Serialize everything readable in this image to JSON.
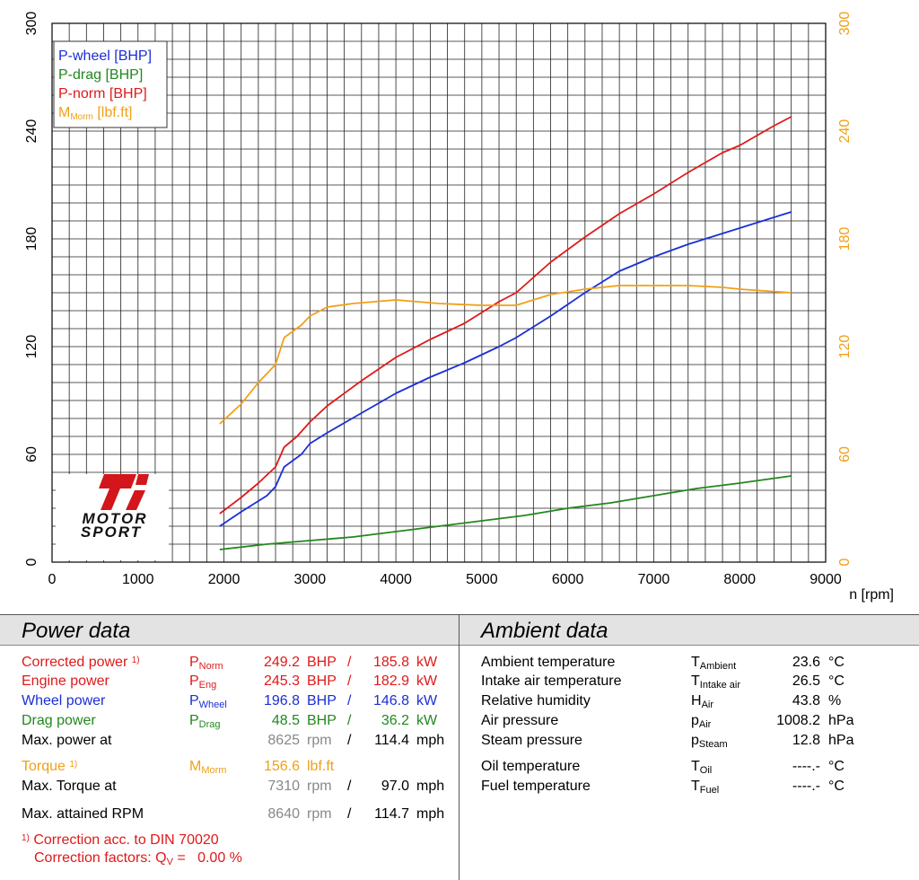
{
  "chart_data": {
    "type": "line",
    "xlabel": "n [rpm]",
    "xlim": [
      0,
      9000
    ],
    "x_ticks": [
      0,
      1000,
      2000,
      3000,
      4000,
      5000,
      6000,
      7000,
      8000,
      9000
    ],
    "ylim_left": [
      0,
      300
    ],
    "ylim_right": [
      0,
      300
    ],
    "y_ticks": [
      0,
      60,
      120,
      180,
      240,
      300
    ],
    "grid": true,
    "legend_position": "top-left",
    "series": [
      {
        "name": "P-wheel [BHP]",
        "color": "#1a2fd6",
        "axis": "left",
        "x": [
          1950,
          2200,
          2500,
          2600,
          2700,
          2900,
          3000,
          3200,
          3600,
          4000,
          4400,
          4800,
          5200,
          5400,
          5800,
          6200,
          6600,
          7000,
          7400,
          7800,
          8000,
          8400,
          8600
        ],
        "y": [
          20,
          28,
          37,
          42,
          53,
          60,
          66,
          72,
          83,
          94,
          103,
          111,
          120,
          125,
          137,
          150,
          162,
          170,
          177,
          183,
          186,
          192,
          195
        ]
      },
      {
        "name": "P-drag [BHP]",
        "color": "#22881e",
        "axis": "left",
        "x": [
          1950,
          2500,
          3000,
          3500,
          4000,
          4500,
          5000,
          5500,
          6000,
          6500,
          7000,
          7500,
          8000,
          8600
        ],
        "y": [
          7,
          10,
          12,
          14,
          17,
          20,
          23,
          26,
          30,
          33,
          37,
          41,
          44,
          48
        ]
      },
      {
        "name": "P-norm [BHP]",
        "color": "#e01919",
        "axis": "left",
        "x": [
          1950,
          2200,
          2400,
          2600,
          2700,
          2850,
          3000,
          3200,
          3600,
          4000,
          4400,
          4800,
          5200,
          5400,
          5800,
          6200,
          6600,
          7000,
          7400,
          7800,
          8000,
          8400,
          8600
        ],
        "y": [
          27,
          36,
          44,
          53,
          64,
          70,
          78,
          87,
          101,
          114,
          124,
          133,
          145,
          150,
          167,
          181,
          194,
          205,
          217,
          228,
          232,
          243,
          248
        ]
      },
      {
        "name": "M_Morm [lbf.ft]",
        "color": "#f0a018",
        "axis": "right",
        "x": [
          1950,
          2200,
          2400,
          2600,
          2700,
          2900,
          3000,
          3200,
          3500,
          4000,
          4500,
          5000,
          5400,
          5800,
          6200,
          6600,
          7000,
          7400,
          7800,
          8000,
          8600
        ],
        "y": [
          77,
          88,
          100,
          110,
          125,
          132,
          137,
          142,
          144,
          146,
          144,
          143,
          143,
          149,
          152,
          154,
          154,
          154,
          153,
          152,
          150
        ]
      }
    ]
  },
  "legend": [
    {
      "main": "P-wheel [BHP]",
      "sub": "",
      "color": "#1a2fd6"
    },
    {
      "main": "P-drag [BHP]",
      "sub": "",
      "color": "#22881e"
    },
    {
      "main": "P-norm [BHP]",
      "sub": "",
      "color": "#e01919"
    },
    {
      "main": "M",
      "sub": "Morm",
      "rest": " [lbf.ft]",
      "color": "#f0a018"
    }
  ],
  "logo": {
    "line1": "MOTOR",
    "line2": "SPORT"
  },
  "power": {
    "title": "Power data",
    "corrected": {
      "label": "Corrected power",
      "mark": "1)",
      "sym": "P",
      "sub": "Norm",
      "v1": "249.2",
      "u1": "BHP",
      "slash": "/",
      "v2": "185.8",
      "u2": "kW"
    },
    "engine": {
      "label": "Engine power",
      "sym": "P",
      "sub": "Eng",
      "v1": "245.3",
      "u1": "BHP",
      "slash": "/",
      "v2": "182.9",
      "u2": "kW"
    },
    "wheel": {
      "label": "Wheel power",
      "sym": "P",
      "sub": "Wheel",
      "v1": "196.8",
      "u1": "BHP",
      "slash": "/",
      "v2": "146.8",
      "u2": "kW"
    },
    "drag": {
      "label": "Drag power",
      "sym": "P",
      "sub": "Drag",
      "v1": "48.5",
      "u1": "BHP",
      "slash": "/",
      "v2": "36.2",
      "u2": "kW"
    },
    "maxpower": {
      "label": "Max. power at",
      "v1": "8625",
      "u1": "rpm",
      "slash": "/",
      "v2": "114.4",
      "u2": "mph"
    },
    "torque": {
      "label": "Torque",
      "mark": "1)",
      "sym": "M",
      "sub": "Morm",
      "v1": "156.6",
      "u1": "lbf.ft"
    },
    "maxtorque": {
      "label": "Max. Torque at",
      "v1": "7310",
      "u1": "rpm",
      "slash": "/",
      "v2": "97.0",
      "u2": "mph"
    },
    "maxrpm": {
      "label": "Max. attained RPM",
      "v1": "8640",
      "u1": "rpm",
      "slash": "/",
      "v2": "114.7",
      "u2": "mph"
    },
    "note1": {
      "mark": "1)",
      "text": "Correction acc. to DIN 70020"
    },
    "note2": {
      "text": "Correction factors: Q",
      "sub": "V",
      "rest": " =   0.00 %"
    }
  },
  "ambient": {
    "title": "Ambient data",
    "rows": [
      {
        "label": "Ambient temperature",
        "sym": "T",
        "sub": "Ambient",
        "val": "23.6",
        "unit": "°C"
      },
      {
        "label": "Intake air temperature",
        "sym": "T",
        "sub": "Intake air",
        "val": "26.5",
        "unit": "°C"
      },
      {
        "label": "Relative humidity",
        "sym": "H",
        "sub": "Air",
        "val": "43.8",
        "unit": "%"
      },
      {
        "label": "Air pressure",
        "sym": "p",
        "sub": "Air",
        "val": "1008.2",
        "unit": "hPa"
      },
      {
        "label": "Steam pressure",
        "sym": "p",
        "sub": "Steam",
        "val": "12.8",
        "unit": "hPa"
      },
      {
        "label": "Oil temperature",
        "sym": "T",
        "sub": "Oil",
        "val": "----.-",
        "unit": "°C"
      },
      {
        "label": "Fuel temperature",
        "sym": "T",
        "sub": "Fuel",
        "val": "----.-",
        "unit": "°C"
      }
    ]
  }
}
